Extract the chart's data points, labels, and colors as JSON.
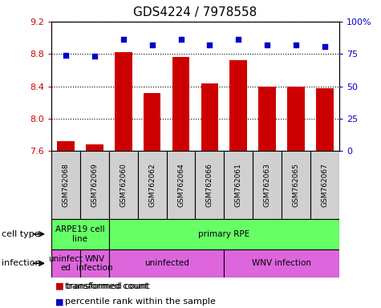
{
  "title": "GDS4224 / 7978558",
  "samples": [
    "GSM762068",
    "GSM762069",
    "GSM762060",
    "GSM762062",
    "GSM762064",
    "GSM762066",
    "GSM762061",
    "GSM762063",
    "GSM762065",
    "GSM762067"
  ],
  "transformed_count": [
    7.72,
    7.68,
    8.82,
    8.32,
    8.76,
    8.43,
    8.72,
    8.4,
    8.4,
    8.38
  ],
  "percentile_rank": [
    74,
    73,
    86,
    82,
    86,
    82,
    86,
    82,
    82,
    81
  ],
  "ylim_left": [
    7.6,
    9.2
  ],
  "ylim_right": [
    0,
    100
  ],
  "yticks_left": [
    7.6,
    8.0,
    8.4,
    8.8,
    9.2
  ],
  "yticks_right": [
    0,
    25,
    50,
    75,
    100
  ],
  "ytick_labels_right": [
    "0",
    "25",
    "50",
    "75",
    "100%"
  ],
  "bar_color": "#cc0000",
  "dot_color": "#0000cc",
  "label_color_left": "#cc0000",
  "label_color_right": "#0000cc",
  "cell_groups": [
    {
      "label": "ARPE19 cell\nline",
      "start": 0,
      "end": 2,
      "color": "#66ff66"
    },
    {
      "label": "primary RPE",
      "start": 2,
      "end": 10,
      "color": "#66ff66"
    }
  ],
  "infection_groups": [
    {
      "label": "uninfect\ned",
      "start": 0,
      "end": 1,
      "color": "#dd66dd"
    },
    {
      "label": "WNV\ninfection",
      "start": 1,
      "end": 2,
      "color": "#dd66dd"
    },
    {
      "label": "uninfected",
      "start": 2,
      "end": 6,
      "color": "#dd66dd"
    },
    {
      "label": "WNV infection",
      "start": 6,
      "end": 10,
      "color": "#dd66dd"
    }
  ],
  "legend_items": [
    {
      "color": "#cc0000",
      "label": "transformed count"
    },
    {
      "color": "#0000cc",
      "label": "percentile rank within the sample"
    }
  ],
  "row_labels": [
    "cell type",
    "infection"
  ],
  "xlim": [
    -0.5,
    9.5
  ],
  "bar_width": 0.6
}
